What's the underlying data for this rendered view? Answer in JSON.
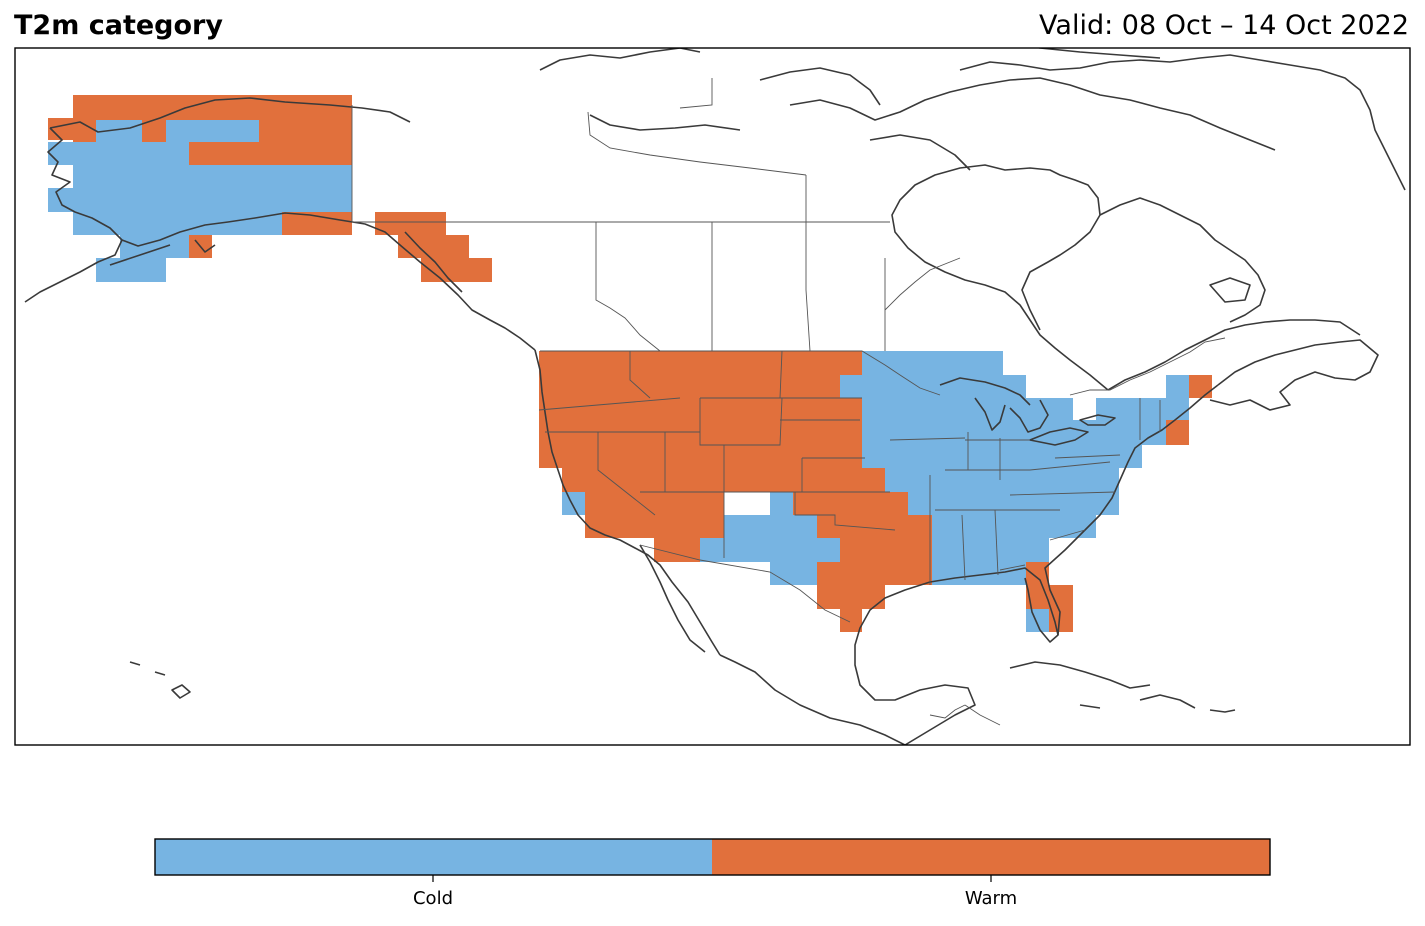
{
  "header": {
    "title": "T2m category",
    "valid": "Valid: 08 Oct – 14 Oct 2022"
  },
  "colors": {
    "cold": "#77b4e2",
    "warm": "#e1703c",
    "coast": "#3a3a3a",
    "border": "#555555"
  },
  "legend": {
    "items": [
      {
        "label": "Cold",
        "color": "#77b4e2"
      },
      {
        "label": "Warm",
        "color": "#e1703c"
      }
    ]
  }
}
